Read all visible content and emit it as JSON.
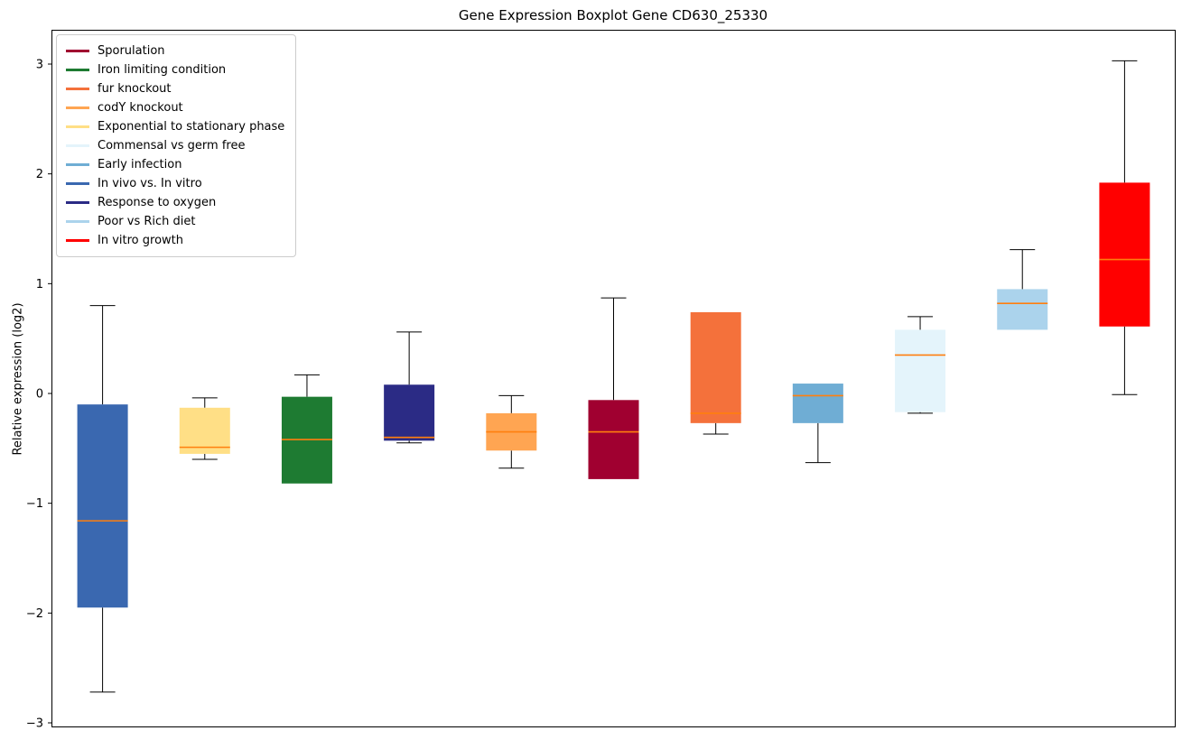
{
  "chart_data": {
    "type": "boxplot",
    "title": "Gene Expression Boxplot Gene CD630_25330",
    "ylabel": "Relative expression (log2)",
    "xlabel": "",
    "ylim": [
      -3,
      3
    ],
    "yticks": [
      -3,
      -2,
      -1,
      0,
      1,
      2,
      3
    ],
    "grid": false,
    "legend_position": "upper left",
    "median_color": "#ff7f0e",
    "frame_color": "#000000",
    "legend": [
      {
        "label": "Sporulation",
        "color": "#a00030"
      },
      {
        "label": "Iron limiting condition",
        "color": "#1e7b32"
      },
      {
        "label": "fur knockout",
        "color": "#f4713b"
      },
      {
        "label": "codY knockout",
        "color": "#ffa552"
      },
      {
        "label": "Exponential to stationary phase",
        "color": "#ffdf86"
      },
      {
        "label": "Commensal vs germ free",
        "color": "#e4f4fb"
      },
      {
        "label": "Early infection",
        "color": "#6fadd4"
      },
      {
        "label": "In vivo vs. In vitro",
        "color": "#3a68b0"
      },
      {
        "label": "Response to oxygen",
        "color": "#2b2b85"
      },
      {
        "label": "Poor vs Rich diet",
        "color": "#abd3ec"
      },
      {
        "label": "In vitro growth",
        "color": "#ff0000"
      }
    ],
    "boxes": [
      {
        "name": "In vivo vs. In vitro",
        "color": "#3a68b0",
        "whisker_low": -2.72,
        "q1": -1.95,
        "median": -1.16,
        "q3": -0.1,
        "whisker_high": 0.8
      },
      {
        "name": "Exponential to stationary phase",
        "color": "#ffdf86",
        "whisker_low": -0.6,
        "q1": -0.55,
        "median": -0.49,
        "q3": -0.13,
        "whisker_high": -0.04
      },
      {
        "name": "Iron limiting condition",
        "color": "#1e7b32",
        "whisker_low": -0.82,
        "q1": -0.82,
        "median": -0.42,
        "q3": -0.03,
        "whisker_high": 0.17
      },
      {
        "name": "Response to oxygen",
        "color": "#2b2b85",
        "whisker_low": -0.45,
        "q1": -0.43,
        "median": -0.4,
        "q3": 0.08,
        "whisker_high": 0.56
      },
      {
        "name": "codY knockout",
        "color": "#ffa552",
        "whisker_low": -0.68,
        "q1": -0.52,
        "median": -0.35,
        "q3": -0.18,
        "whisker_high": -0.02
      },
      {
        "name": "Sporulation",
        "color": "#a00030",
        "whisker_low": -0.78,
        "q1": -0.78,
        "median": -0.35,
        "q3": -0.06,
        "whisker_high": 0.87
      },
      {
        "name": "fur knockout",
        "color": "#f4713b",
        "whisker_low": -0.37,
        "q1": -0.27,
        "median": -0.18,
        "q3": 0.74,
        "whisker_high": 0.74
      },
      {
        "name": "Early infection",
        "color": "#6fadd4",
        "whisker_low": -0.63,
        "q1": -0.27,
        "median": -0.02,
        "q3": 0.09,
        "whisker_high": 0.09
      },
      {
        "name": "Commensal vs germ free",
        "color": "#e4f4fb",
        "whisker_low": -0.18,
        "q1": -0.17,
        "median": 0.35,
        "q3": 0.58,
        "whisker_high": 0.7
      },
      {
        "name": "Poor vs Rich diet",
        "color": "#abd3ec",
        "whisker_low": 0.58,
        "q1": 0.58,
        "median": 0.82,
        "q3": 0.95,
        "whisker_high": 1.31
      },
      {
        "name": "In vitro growth",
        "color": "#ff0000",
        "whisker_low": -0.01,
        "q1": 0.61,
        "median": 1.22,
        "q3": 1.92,
        "whisker_high": 3.03
      }
    ]
  }
}
